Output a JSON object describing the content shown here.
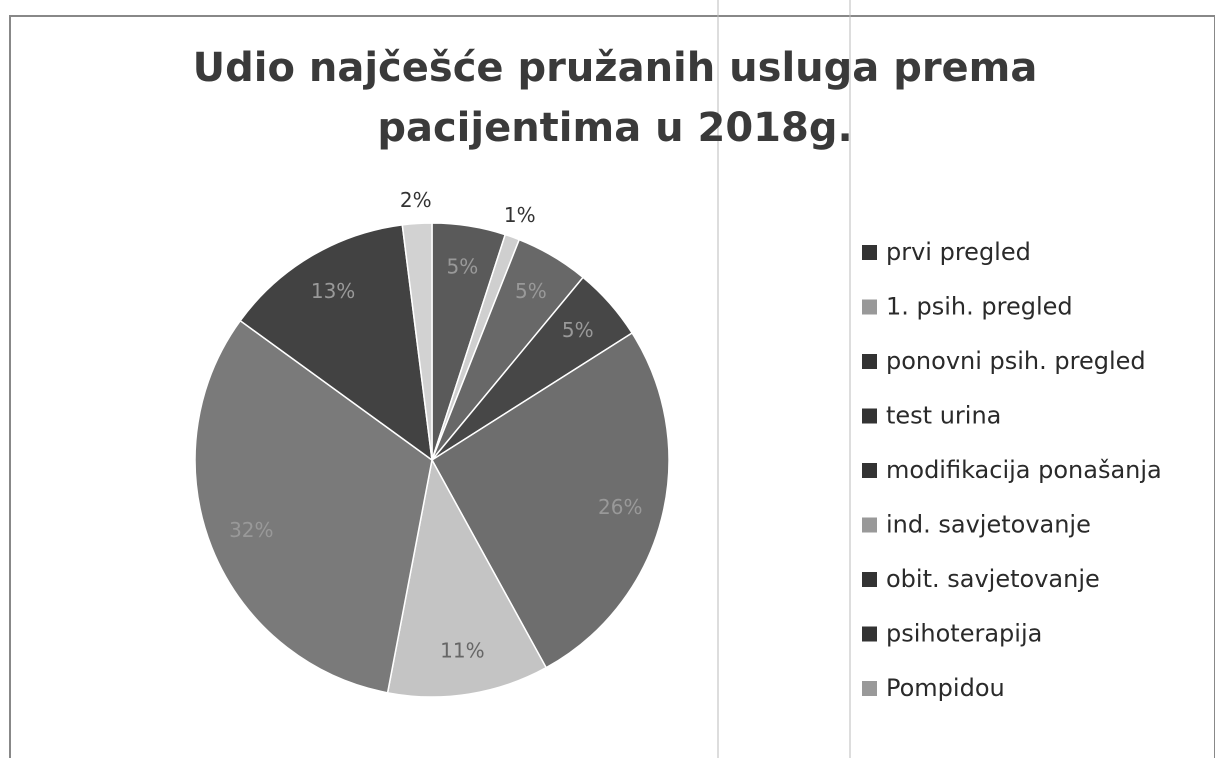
{
  "chart_data": {
    "type": "pie",
    "title": [
      "Udio najčešće pružanih usluga prema",
      "pacijentima u 2018g."
    ],
    "categories": [
      "prvi pregled",
      "1. psih. pregled",
      "ponovni psih. pregled",
      "test urina",
      "modifikacija ponašanja",
      "ind. savjetovanje",
      "obit. savjetovanje",
      "psihoterapija",
      "Pompidou"
    ],
    "values": [
      5,
      1,
      5,
      5,
      26,
      11,
      32,
      13,
      2
    ],
    "value_labels": [
      "5%",
      "1%",
      "5%",
      "5%",
      "26%",
      "11%",
      "32%",
      "13%",
      "2%"
    ],
    "colors": [
      "#5a5a5a",
      "#cfcfcf",
      "#686868",
      "#474747",
      "#6e6e6e",
      "#c4c4c4",
      "#7a7a7a",
      "#424242",
      "#d2d2d2"
    ],
    "legend": "right"
  }
}
